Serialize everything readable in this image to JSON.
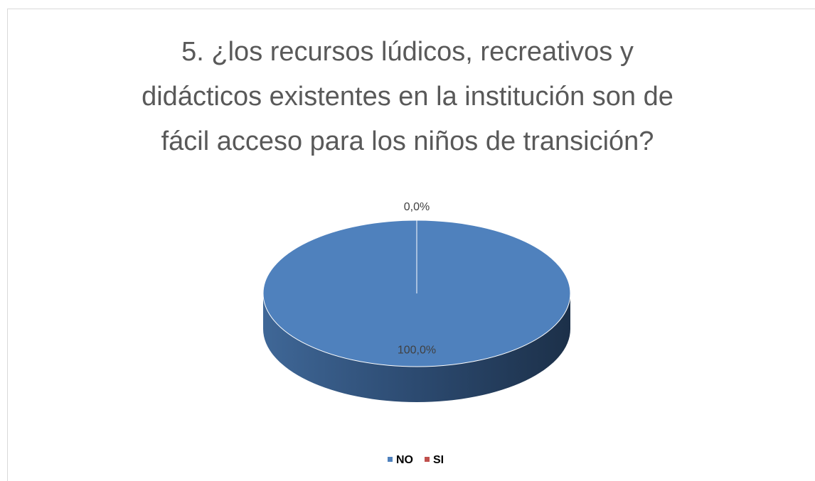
{
  "chart_data": {
    "type": "pie",
    "title": "5. ¿los recursos lúdicos, recreativos y\ndidácticos existentes en la institución son de\nfácil acceso para los niños de transición?",
    "categories": [
      "NO",
      "SI"
    ],
    "values": [
      100,
      0
    ],
    "value_labels": [
      "100,0%",
      "0,0%"
    ],
    "colors": [
      "#4f81bd",
      "#c0504d"
    ],
    "legend": "bottom"
  }
}
